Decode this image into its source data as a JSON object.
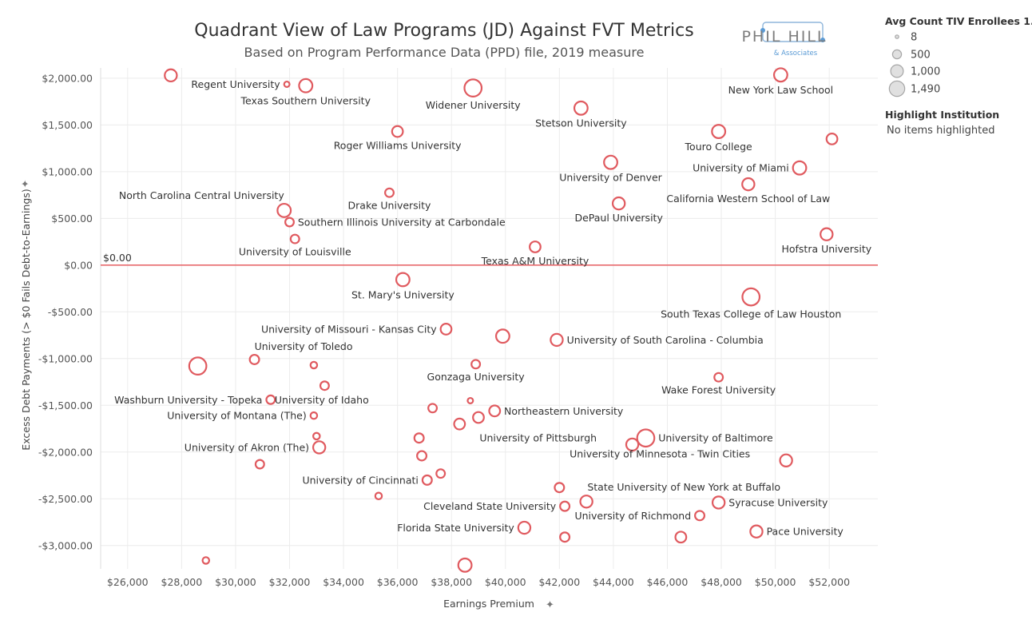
{
  "chart_data": {
    "type": "scatter",
    "title": "Quadrant View of Law Programs (JD) Against FVT Metrics",
    "subtitle": "Based on Program Performance Data (PPD) file, 2019 measure",
    "xlabel": "Earnings Premium",
    "ylabel": "Excess Debt Payments (> $0 Fails Debt-to-Earnings)",
    "xlim": [
      25000,
      53800
    ],
    "ylim": [
      -3250,
      2110
    ],
    "x_ticks": [
      26000,
      28000,
      30000,
      32000,
      34000,
      36000,
      38000,
      40000,
      42000,
      44000,
      46000,
      48000,
      50000,
      52000
    ],
    "x_tick_labels": [
      "$26,000",
      "$28,000",
      "$30,000",
      "$32,000",
      "$34,000",
      "$36,000",
      "$38,000",
      "$40,000",
      "$42,000",
      "$44,000",
      "$46,000",
      "$48,000",
      "$50,000",
      "$52,000"
    ],
    "y_ticks": [
      2000,
      1500,
      1000,
      500,
      0,
      -500,
      -1000,
      -1500,
      -2000,
      -2500,
      -3000
    ],
    "y_tick_labels": [
      "$2,000.00",
      "$1,500.00",
      "$1,000.00",
      "$500.00",
      "$0.00",
      "-$500.00",
      "-$1,000.00",
      "-$1,500.00",
      "-$2,000.00",
      "-$2,500.00",
      "-$3,000.00"
    ],
    "reference_line": {
      "value": 0,
      "label": "$0.00"
    },
    "points": [
      {
        "x": 27600,
        "y": 2030,
        "size": 500,
        "label": ""
      },
      {
        "x": 31900,
        "y": 1935,
        "size": 100,
        "label": "Regent University",
        "anchor": "end"
      },
      {
        "x": 32600,
        "y": 1920,
        "size": 600,
        "label": "Texas Southern University",
        "anchor": "middle",
        "below": true
      },
      {
        "x": 38800,
        "y": 1895,
        "size": 1000,
        "label": "Widener University",
        "anchor": "middle",
        "below": true
      },
      {
        "x": 50200,
        "y": 2035,
        "size": 600,
        "label": "New York Law School",
        "anchor": "middle",
        "below": true
      },
      {
        "x": 42800,
        "y": 1680,
        "size": 600,
        "label": "Stetson University",
        "anchor": "middle",
        "below": true
      },
      {
        "x": 36000,
        "y": 1430,
        "size": 400,
        "label": "Roger Williams University",
        "anchor": "middle",
        "below": true
      },
      {
        "x": 47900,
        "y": 1430,
        "size": 600,
        "label": "Touro College",
        "anchor": "middle",
        "below": true
      },
      {
        "x": 52100,
        "y": 1350,
        "size": 400,
        "label": ""
      },
      {
        "x": 43900,
        "y": 1100,
        "size": 600,
        "label": "University of Denver",
        "anchor": "middle",
        "below": true
      },
      {
        "x": 50900,
        "y": 1040,
        "size": 600,
        "label": "University of Miami",
        "anchor": "end"
      },
      {
        "x": 49000,
        "y": 865,
        "size": 500,
        "label": "California Western School of Law",
        "anchor": "middle",
        "below": true
      },
      {
        "x": 35700,
        "y": 775,
        "size": 250,
        "label": "Drake University",
        "anchor": "middle",
        "below": true
      },
      {
        "x": 31800,
        "y": 585,
        "size": 600,
        "label": "North Carolina Central University",
        "anchor": "end",
        "above": true
      },
      {
        "x": 44200,
        "y": 660,
        "size": 500,
        "label": "DePaul University",
        "anchor": "middle",
        "below": true
      },
      {
        "x": 32000,
        "y": 460,
        "size": 250,
        "label": "Southern Illinois University at Carbondale",
        "anchor": "start"
      },
      {
        "x": 32200,
        "y": 280,
        "size": 250,
        "label": "University of Louisville",
        "anchor": "middle",
        "below": true
      },
      {
        "x": 41100,
        "y": 195,
        "size": 400,
        "label": "Texas A&M University",
        "anchor": "middle",
        "below": true
      },
      {
        "x": 51900,
        "y": 330,
        "size": 500,
        "label": "Hofstra University",
        "anchor": "middle",
        "below": true
      },
      {
        "x": 36200,
        "y": -155,
        "size": 600,
        "label": "St. Mary's University",
        "anchor": "middle",
        "below": true
      },
      {
        "x": 49100,
        "y": -340,
        "size": 1000,
        "label": "South Texas College of Law Houston",
        "anchor": "middle",
        "below": true
      },
      {
        "x": 37800,
        "y": -685,
        "size": 400,
        "label": "University of Missouri - Kansas City",
        "anchor": "end"
      },
      {
        "x": 39900,
        "y": -760,
        "size": 600,
        "label": ""
      },
      {
        "x": 41900,
        "y": -800,
        "size": 500,
        "label": "University of South Carolina - Columbia",
        "anchor": "start"
      },
      {
        "x": 30700,
        "y": -1010,
        "size": 300,
        "label": "University of Toledo",
        "anchor": "start",
        "above": true
      },
      {
        "x": 28600,
        "y": -1080,
        "size": 1000,
        "label": ""
      },
      {
        "x": 32900,
        "y": -1070,
        "size": 150,
        "label": ""
      },
      {
        "x": 38900,
        "y": -1060,
        "size": 250,
        "label": "Gonzaga University",
        "anchor": "middle",
        "below": true
      },
      {
        "x": 47900,
        "y": -1200,
        "size": 250,
        "label": "Wake Forest University",
        "anchor": "middle",
        "below": true
      },
      {
        "x": 33300,
        "y": -1290,
        "size": 250,
        "label": ""
      },
      {
        "x": 31300,
        "y": -1440,
        "size": 250,
        "label": "Washburn University - Topeka",
        "anchor": "end"
      },
      {
        "x": 31300,
        "y": -1440,
        "size": 0,
        "label": "University of Idaho",
        "anchor": "start"
      },
      {
        "x": 38700,
        "y": -1450,
        "size": 100,
        "label": ""
      },
      {
        "x": 37300,
        "y": -1530,
        "size": 250,
        "label": ""
      },
      {
        "x": 39600,
        "y": -1560,
        "size": 400,
        "label": "Northeastern University",
        "anchor": "start"
      },
      {
        "x": 32900,
        "y": -1610,
        "size": 150,
        "label": "University of Montana (The)",
        "anchor": "end"
      },
      {
        "x": 39000,
        "y": -1630,
        "size": 400,
        "label": ""
      },
      {
        "x": 38300,
        "y": -1700,
        "size": 400,
        "label": "University of Pittsburgh",
        "anchor": "start",
        "belowRight": true
      },
      {
        "x": 33000,
        "y": -1830,
        "size": 150,
        "label": ""
      },
      {
        "x": 36800,
        "y": -1850,
        "size": 300,
        "label": ""
      },
      {
        "x": 45200,
        "y": -1850,
        "size": 1000,
        "label": "University of Baltimore",
        "anchor": "start"
      },
      {
        "x": 44700,
        "y": -1920,
        "size": 500,
        "label": ""
      },
      {
        "x": 33100,
        "y": -1950,
        "size": 500,
        "label": "University of Akron (The)",
        "anchor": "end"
      },
      {
        "x": 36900,
        "y": -2040,
        "size": 300,
        "label": ""
      },
      {
        "x": 50400,
        "y": -2090,
        "size": 500,
        "label": "University of Minnesota - Twin Cities",
        "anchor": "end",
        "aboveLeft": true
      },
      {
        "x": 30900,
        "y": -2130,
        "size": 250,
        "label": ""
      },
      {
        "x": 37600,
        "y": -2230,
        "size": 250,
        "label": ""
      },
      {
        "x": 37100,
        "y": -2300,
        "size": 300,
        "label": "University of Cincinnati",
        "anchor": "end"
      },
      {
        "x": 42000,
        "y": -2380,
        "size": 300,
        "label": "State University of New York at Buffalo",
        "anchor": "start",
        "aboveRight": true
      },
      {
        "x": 35300,
        "y": -2470,
        "size": 150,
        "label": ""
      },
      {
        "x": 43000,
        "y": -2530,
        "size": 500,
        "label": ""
      },
      {
        "x": 47900,
        "y": -2540,
        "size": 500,
        "label": "Syracuse University",
        "anchor": "start"
      },
      {
        "x": 42200,
        "y": -2580,
        "size": 300,
        "label": "Cleveland State University",
        "anchor": "end"
      },
      {
        "x": 47200,
        "y": -2680,
        "size": 300,
        "label": "University of Richmond",
        "anchor": "end"
      },
      {
        "x": 40700,
        "y": -2810,
        "size": 500,
        "label": "Florida State University",
        "anchor": "end"
      },
      {
        "x": 49300,
        "y": -2850,
        "size": 500,
        "label": "Pace University",
        "anchor": "start"
      },
      {
        "x": 42200,
        "y": -2910,
        "size": 300,
        "label": ""
      },
      {
        "x": 46500,
        "y": -2910,
        "size": 400,
        "label": ""
      },
      {
        "x": 28900,
        "y": -3160,
        "size": 150,
        "label": ""
      },
      {
        "x": 38500,
        "y": -3210,
        "size": 600,
        "label": ""
      }
    ],
    "legend": {
      "title": "Avg Count TIV Enrollees 1..",
      "entries": [
        {
          "label": "8",
          "size": 8
        },
        {
          "label": "500",
          "size": 500
        },
        {
          "label": "1,000",
          "size": 1000
        },
        {
          "label": "1,490",
          "size": 1490
        }
      ]
    }
  },
  "highlight": {
    "title": "Highlight Institution",
    "value": "No items highlighted"
  },
  "logo": {
    "main": "PHIL HILL",
    "sub": "& Associates"
  },
  "colors": {
    "point": "#e05a5f",
    "zero_line": "#e86a6e",
    "accent": "#5b9bd5"
  }
}
